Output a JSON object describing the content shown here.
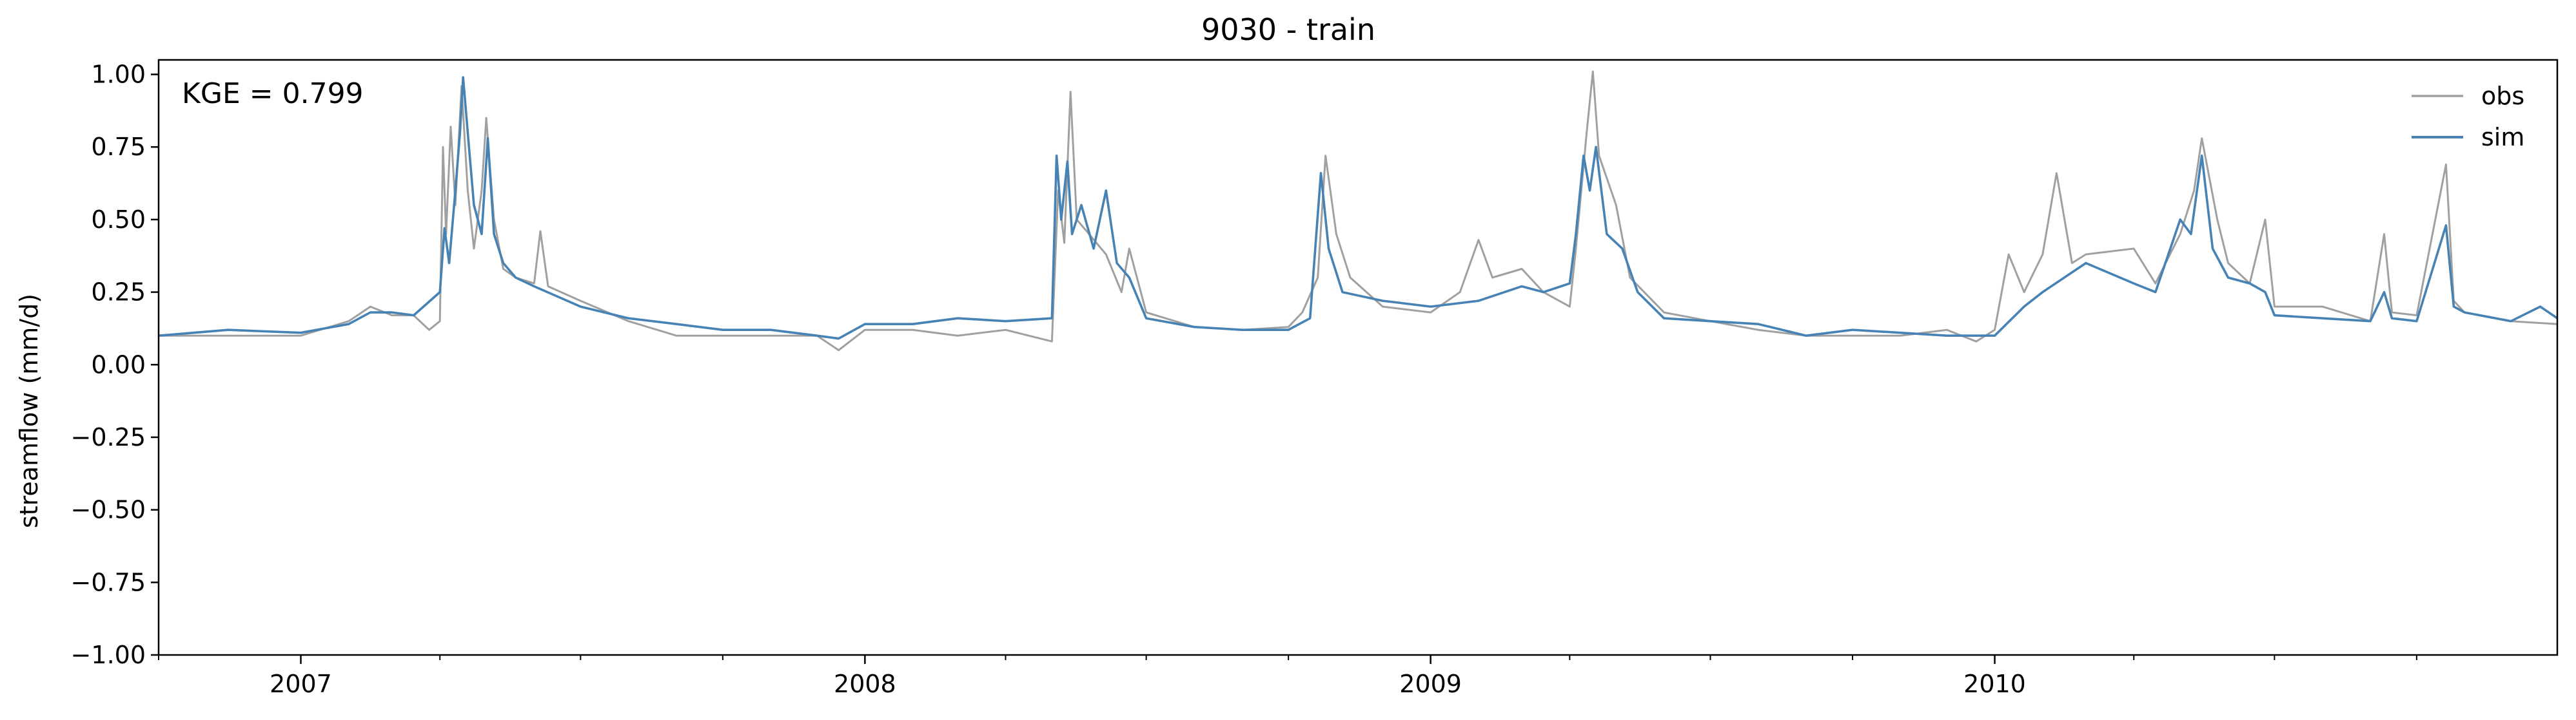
{
  "chart_data": {
    "type": "line",
    "title": "9030 - train",
    "xlabel": "",
    "ylabel": "streamflow (mm/d)",
    "annotation": "KGE = 0.799",
    "ylim": [
      -1.0,
      1.05
    ],
    "xlim": [
      "2006-10-01",
      "2010-12-31"
    ],
    "yticks": [
      1.0,
      0.75,
      0.5,
      0.25,
      0.0,
      -0.25,
      -0.5,
      -0.75,
      -1.0
    ],
    "ytick_labels": [
      "1.00",
      "0.75",
      "0.50",
      "0.25",
      "0.00",
      "−0.25",
      "−0.50",
      "−0.75",
      "−1.00"
    ],
    "xticks_major": [
      "2007-01-01",
      "2008-01-01",
      "2009-01-01",
      "2010-01-01"
    ],
    "xtick_labels": [
      "2007",
      "2008",
      "2009",
      "2010"
    ],
    "xticks_minor": [
      "2006-10-01",
      "2007-04-01",
      "2007-07-01",
      "2007-10-01",
      "2008-04-01",
      "2008-07-01",
      "2008-10-01",
      "2009-04-01",
      "2009-07-01",
      "2009-10-01",
      "2010-04-01",
      "2010-07-01",
      "2010-10-01"
    ],
    "grid": false,
    "legend_position": "top-right",
    "series": [
      {
        "name": "obs",
        "color": "#a0a0a0",
        "points": [
          [
            "2006-10-01",
            0.1
          ],
          [
            "2006-11-15",
            0.1
          ],
          [
            "2007-01-01",
            0.1
          ],
          [
            "2007-02-01",
            0.15
          ],
          [
            "2007-02-15",
            0.2
          ],
          [
            "2007-03-01",
            0.17
          ],
          [
            "2007-03-15",
            0.17
          ],
          [
            "2007-03-25",
            0.12
          ],
          [
            "2007-04-01",
            0.15
          ],
          [
            "2007-04-03",
            0.75
          ],
          [
            "2007-04-05",
            0.45
          ],
          [
            "2007-04-08",
            0.82
          ],
          [
            "2007-04-11",
            0.55
          ],
          [
            "2007-04-15",
            0.96
          ],
          [
            "2007-04-19",
            0.6
          ],
          [
            "2007-04-23",
            0.4
          ],
          [
            "2007-04-28",
            0.6
          ],
          [
            "2007-05-01",
            0.85
          ],
          [
            "2007-05-06",
            0.5
          ],
          [
            "2007-05-12",
            0.33
          ],
          [
            "2007-05-20",
            0.3
          ],
          [
            "2007-06-01",
            0.28
          ],
          [
            "2007-06-05",
            0.46
          ],
          [
            "2007-06-10",
            0.27
          ],
          [
            "2007-07-01",
            0.22
          ],
          [
            "2007-08-01",
            0.15
          ],
          [
            "2007-09-01",
            0.1
          ],
          [
            "2007-10-01",
            0.1
          ],
          [
            "2007-11-01",
            0.1
          ],
          [
            "2007-12-01",
            0.1
          ],
          [
            "2007-12-15",
            0.05
          ],
          [
            "2008-01-01",
            0.12
          ],
          [
            "2008-02-01",
            0.12
          ],
          [
            "2008-03-01",
            0.1
          ],
          [
            "2008-04-01",
            0.12
          ],
          [
            "2008-05-01",
            0.08
          ],
          [
            "2008-05-05",
            0.6
          ],
          [
            "2008-05-09",
            0.42
          ],
          [
            "2008-05-13",
            0.94
          ],
          [
            "2008-05-17",
            0.5
          ],
          [
            "2008-05-25",
            0.45
          ],
          [
            "2008-06-05",
            0.38
          ],
          [
            "2008-06-15",
            0.25
          ],
          [
            "2008-06-20",
            0.4
          ],
          [
            "2008-07-01",
            0.18
          ],
          [
            "2008-08-01",
            0.13
          ],
          [
            "2008-09-01",
            0.12
          ],
          [
            "2008-10-01",
            0.13
          ],
          [
            "2008-10-10",
            0.18
          ],
          [
            "2008-10-20",
            0.3
          ],
          [
            "2008-10-25",
            0.72
          ],
          [
            "2008-11-01",
            0.45
          ],
          [
            "2008-11-10",
            0.3
          ],
          [
            "2008-12-01",
            0.2
          ],
          [
            "2009-01-01",
            0.18
          ],
          [
            "2009-01-20",
            0.25
          ],
          [
            "2009-02-01",
            0.43
          ],
          [
            "2009-02-10",
            0.3
          ],
          [
            "2009-03-01",
            0.33
          ],
          [
            "2009-03-15",
            0.25
          ],
          [
            "2009-04-01",
            0.2
          ],
          [
            "2009-04-05",
            0.4
          ],
          [
            "2009-04-12",
            0.8
          ],
          [
            "2009-04-16",
            1.01
          ],
          [
            "2009-04-20",
            0.72
          ],
          [
            "2009-05-01",
            0.55
          ],
          [
            "2009-05-10",
            0.3
          ],
          [
            "2009-06-01",
            0.18
          ],
          [
            "2009-07-01",
            0.15
          ],
          [
            "2009-08-01",
            0.12
          ],
          [
            "2009-09-01",
            0.1
          ],
          [
            "2009-10-01",
            0.1
          ],
          [
            "2009-11-01",
            0.1
          ],
          [
            "2009-12-01",
            0.12
          ],
          [
            "2009-12-20",
            0.08
          ],
          [
            "2010-01-01",
            0.12
          ],
          [
            "2010-01-10",
            0.38
          ],
          [
            "2010-01-20",
            0.25
          ],
          [
            "2010-02-01",
            0.38
          ],
          [
            "2010-02-10",
            0.66
          ],
          [
            "2010-02-20",
            0.35
          ],
          [
            "2010-03-01",
            0.38
          ],
          [
            "2010-04-01",
            0.4
          ],
          [
            "2010-04-15",
            0.28
          ],
          [
            "2010-05-01",
            0.45
          ],
          [
            "2010-05-10",
            0.6
          ],
          [
            "2010-05-15",
            0.78
          ],
          [
            "2010-05-25",
            0.5
          ],
          [
            "2010-06-01",
            0.35
          ],
          [
            "2010-06-15",
            0.28
          ],
          [
            "2010-06-25",
            0.5
          ],
          [
            "2010-07-01",
            0.2
          ],
          [
            "2010-08-01",
            0.2
          ],
          [
            "2010-09-01",
            0.15
          ],
          [
            "2010-09-10",
            0.45
          ],
          [
            "2010-09-15",
            0.18
          ],
          [
            "2010-10-01",
            0.17
          ],
          [
            "2010-10-20",
            0.69
          ],
          [
            "2010-10-25",
            0.22
          ],
          [
            "2010-11-01",
            0.18
          ],
          [
            "2010-12-01",
            0.15
          ],
          [
            "2010-12-31",
            0.14
          ]
        ]
      },
      {
        "name": "sim",
        "color": "#4682b4",
        "points": [
          [
            "2006-10-01",
            0.1
          ],
          [
            "2006-11-15",
            0.12
          ],
          [
            "2007-01-01",
            0.11
          ],
          [
            "2007-02-01",
            0.14
          ],
          [
            "2007-02-15",
            0.18
          ],
          [
            "2007-03-01",
            0.18
          ],
          [
            "2007-03-15",
            0.17
          ],
          [
            "2007-04-01",
            0.25
          ],
          [
            "2007-04-04",
            0.47
          ],
          [
            "2007-04-07",
            0.35
          ],
          [
            "2007-04-11",
            0.6
          ],
          [
            "2007-04-14",
            0.8
          ],
          [
            "2007-04-16",
            0.99
          ],
          [
            "2007-04-19",
            0.8
          ],
          [
            "2007-04-23",
            0.55
          ],
          [
            "2007-04-28",
            0.45
          ],
          [
            "2007-05-02",
            0.78
          ],
          [
            "2007-05-06",
            0.45
          ],
          [
            "2007-05-12",
            0.35
          ],
          [
            "2007-05-20",
            0.3
          ],
          [
            "2007-06-01",
            0.27
          ],
          [
            "2007-07-01",
            0.2
          ],
          [
            "2007-08-01",
            0.16
          ],
          [
            "2007-09-01",
            0.14
          ],
          [
            "2007-10-01",
            0.12
          ],
          [
            "2007-11-01",
            0.12
          ],
          [
            "2007-12-01",
            0.1
          ],
          [
            "2007-12-15",
            0.09
          ],
          [
            "2008-01-01",
            0.14
          ],
          [
            "2008-02-01",
            0.14
          ],
          [
            "2008-03-01",
            0.16
          ],
          [
            "2008-04-01",
            0.15
          ],
          [
            "2008-05-01",
            0.16
          ],
          [
            "2008-05-04",
            0.72
          ],
          [
            "2008-05-07",
            0.5
          ],
          [
            "2008-05-11",
            0.7
          ],
          [
            "2008-05-14",
            0.45
          ],
          [
            "2008-05-20",
            0.55
          ],
          [
            "2008-05-28",
            0.4
          ],
          [
            "2008-06-05",
            0.6
          ],
          [
            "2008-06-12",
            0.35
          ],
          [
            "2008-06-20",
            0.3
          ],
          [
            "2008-07-01",
            0.16
          ],
          [
            "2008-08-01",
            0.13
          ],
          [
            "2008-09-01",
            0.12
          ],
          [
            "2008-10-01",
            0.12
          ],
          [
            "2008-10-15",
            0.16
          ],
          [
            "2008-10-22",
            0.66
          ],
          [
            "2008-10-27",
            0.4
          ],
          [
            "2008-11-05",
            0.25
          ],
          [
            "2008-12-01",
            0.22
          ],
          [
            "2009-01-01",
            0.2
          ],
          [
            "2009-02-01",
            0.22
          ],
          [
            "2009-03-01",
            0.27
          ],
          [
            "2009-03-15",
            0.25
          ],
          [
            "2009-04-01",
            0.28
          ],
          [
            "2009-04-05",
            0.45
          ],
          [
            "2009-04-10",
            0.72
          ],
          [
            "2009-04-14",
            0.6
          ],
          [
            "2009-04-18",
            0.75
          ],
          [
            "2009-04-25",
            0.45
          ],
          [
            "2009-05-05",
            0.4
          ],
          [
            "2009-05-15",
            0.25
          ],
          [
            "2009-06-01",
            0.16
          ],
          [
            "2009-07-01",
            0.15
          ],
          [
            "2009-08-01",
            0.14
          ],
          [
            "2009-09-01",
            0.1
          ],
          [
            "2009-10-01",
            0.12
          ],
          [
            "2009-11-01",
            0.11
          ],
          [
            "2009-12-01",
            0.1
          ],
          [
            "2010-01-01",
            0.1
          ],
          [
            "2010-01-20",
            0.2
          ],
          [
            "2010-02-01",
            0.25
          ],
          [
            "2010-02-15",
            0.3
          ],
          [
            "2010-03-01",
            0.35
          ],
          [
            "2010-04-01",
            0.28
          ],
          [
            "2010-04-15",
            0.25
          ],
          [
            "2010-05-01",
            0.5
          ],
          [
            "2010-05-08",
            0.45
          ],
          [
            "2010-05-15",
            0.72
          ],
          [
            "2010-05-22",
            0.4
          ],
          [
            "2010-06-01",
            0.3
          ],
          [
            "2010-06-15",
            0.28
          ],
          [
            "2010-06-25",
            0.25
          ],
          [
            "2010-07-01",
            0.17
          ],
          [
            "2010-08-01",
            0.16
          ],
          [
            "2010-09-01",
            0.15
          ],
          [
            "2010-09-10",
            0.25
          ],
          [
            "2010-09-15",
            0.16
          ],
          [
            "2010-10-01",
            0.15
          ],
          [
            "2010-10-20",
            0.48
          ],
          [
            "2010-10-25",
            0.2
          ],
          [
            "2010-11-01",
            0.18
          ],
          [
            "2010-12-01",
            0.15
          ],
          [
            "2010-12-20",
            0.2
          ],
          [
            "2010-12-31",
            0.16
          ]
        ]
      }
    ]
  }
}
